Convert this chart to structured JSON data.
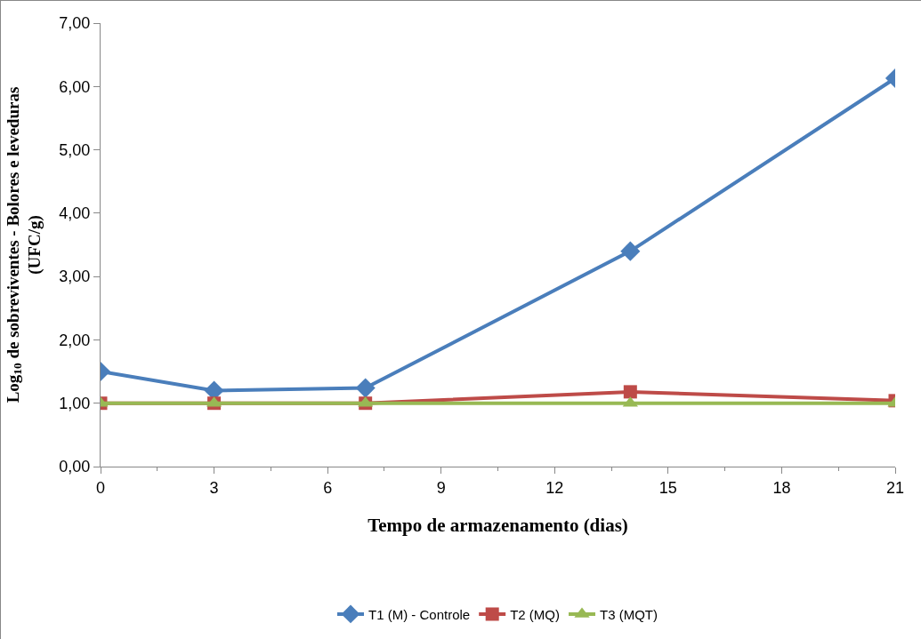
{
  "chart_data": {
    "type": "line",
    "xlabel": "Tempo de armazenamento (dias)",
    "ylabel": "Log$_{10}$ de sobreviventes - Bolores e leveduras (UFC/g)",
    "x": [
      0,
      3,
      7,
      14,
      21
    ],
    "series": [
      {
        "name": "T1 (M) - Controle",
        "color": "#4a7ebb",
        "marker": "diamond",
        "values": [
          1.5,
          1.2,
          1.24,
          3.4,
          6.13
        ]
      },
      {
        "name": "T2 (MQ)",
        "color": "#be4b48",
        "marker": "square",
        "values": [
          1.0,
          1.0,
          1.0,
          1.18,
          1.04
        ]
      },
      {
        "name": "T3 (MQT)",
        "color": "#98b954",
        "marker": "triangle",
        "values": [
          1.0,
          1.0,
          1.0,
          1.0,
          1.0
        ]
      }
    ],
    "xlim": [
      0,
      21
    ],
    "xticks": [
      0,
      3,
      6,
      9,
      12,
      15,
      18,
      21
    ],
    "ylim": [
      0,
      7
    ],
    "yticks": [
      {
        "value": 0,
        "label": "0,00"
      },
      {
        "value": 1,
        "label": "1,00"
      },
      {
        "value": 2,
        "label": "2,00"
      },
      {
        "value": 3,
        "label": "3,00"
      },
      {
        "value": 4,
        "label": "4,00"
      },
      {
        "value": 5,
        "label": "5,00"
      },
      {
        "value": 6,
        "label": "6,00"
      },
      {
        "value": 7,
        "label": "7,00"
      }
    ],
    "grid": false,
    "legend": "bottom",
    "line_style": "solid"
  }
}
